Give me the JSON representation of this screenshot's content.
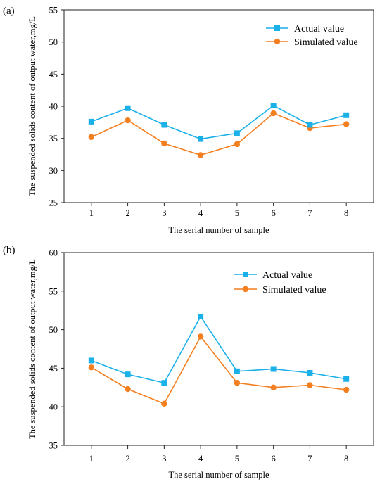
{
  "chart_data": [
    {
      "panel_label": "(a)",
      "type": "line",
      "xlabel": "The serial number of sample",
      "ylabel": "The suspended solids content of output water,mg/L",
      "categories": [
        "1",
        "2",
        "3",
        "4",
        "5",
        "6",
        "7",
        "8"
      ],
      "ylim": [
        25,
        55
      ],
      "yticks": [
        "25",
        "30",
        "35",
        "40",
        "45",
        "50",
        "55"
      ],
      "grid": false,
      "legend": "top-right",
      "series": [
        {
          "name": "Actual value",
          "marker": "square",
          "color": "#1ab0e8",
          "values": [
            37.6,
            39.7,
            37.1,
            34.9,
            35.8,
            40.1,
            37.1,
            38.6
          ]
        },
        {
          "name": "Simulated value",
          "marker": "circle",
          "color": "#f47f20",
          "values": [
            35.2,
            37.8,
            34.2,
            32.4,
            34.1,
            38.9,
            36.6,
            37.2
          ]
        }
      ]
    },
    {
      "panel_label": "(b)",
      "type": "line",
      "xlabel": "The serial number of sample",
      "ylabel": "The suspended solids content of output water,mg/L",
      "categories": [
        "1",
        "2",
        "3",
        "4",
        "5",
        "6",
        "7",
        "8"
      ],
      "ylim": [
        35,
        60
      ],
      "yticks": [
        "35",
        "40",
        "45",
        "50",
        "55",
        "60"
      ],
      "grid": false,
      "legend": "top-right",
      "series": [
        {
          "name": "Actual value",
          "marker": "square",
          "color": "#1ab0e8",
          "values": [
            46.0,
            44.2,
            43.1,
            51.7,
            44.6,
            44.9,
            44.4,
            43.6
          ]
        },
        {
          "name": "Simulated value",
          "marker": "circle",
          "color": "#f47f20",
          "values": [
            45.1,
            42.3,
            40.4,
            49.1,
            43.1,
            42.5,
            42.8,
            42.2
          ]
        }
      ]
    }
  ]
}
